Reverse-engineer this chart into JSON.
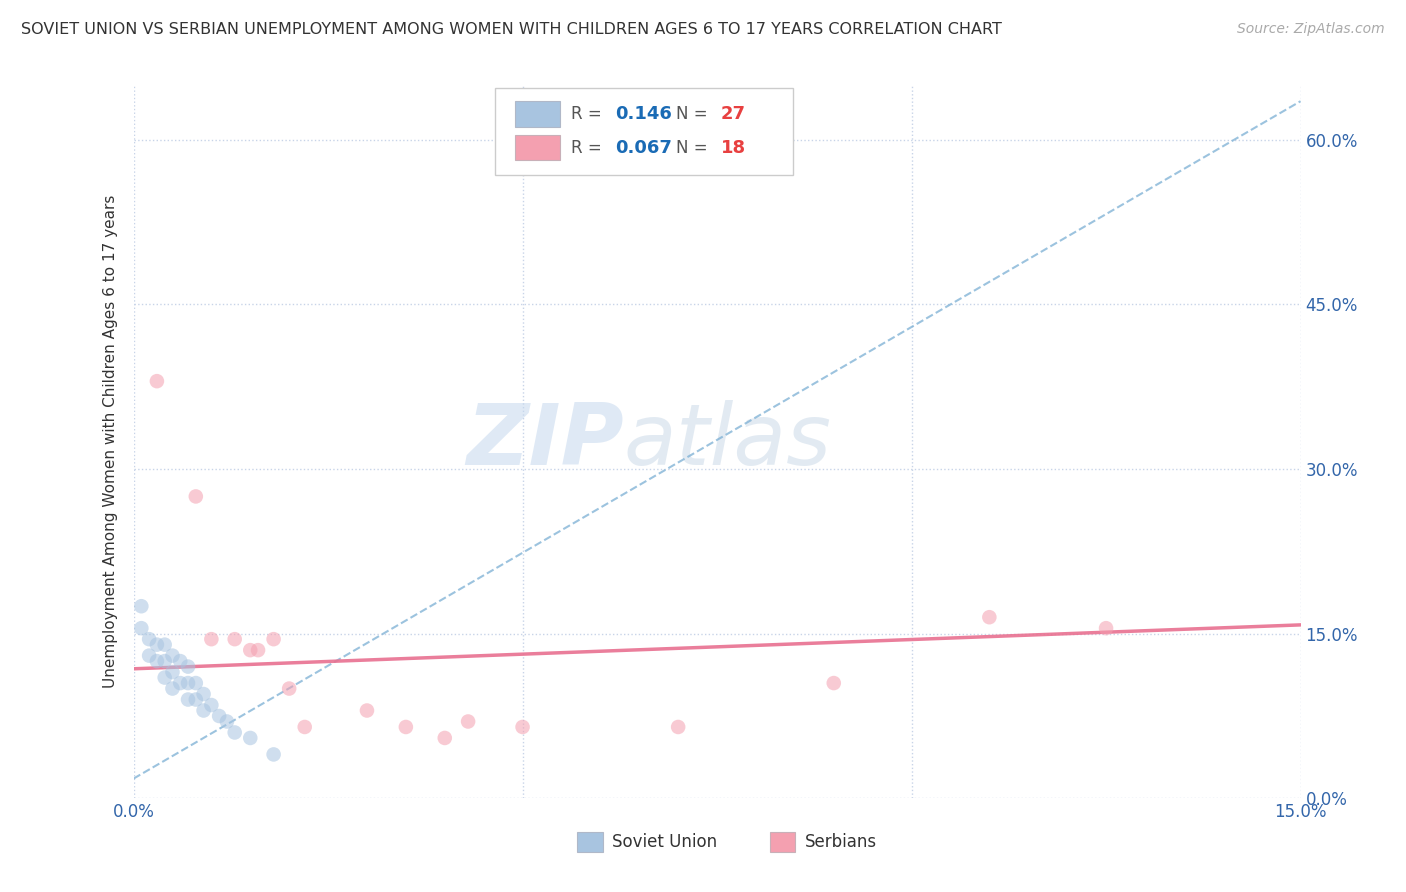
{
  "title": "SOVIET UNION VS SERBIAN UNEMPLOYMENT AMONG WOMEN WITH CHILDREN AGES 6 TO 17 YEARS CORRELATION CHART",
  "source": "Source: ZipAtlas.com",
  "ylabel": "Unemployment Among Women with Children Ages 6 to 17 years",
  "xlim": [
    0.0,
    0.15
  ],
  "ylim": [
    0.0,
    0.65
  ],
  "ytick_positions": [
    0.0,
    0.15,
    0.3,
    0.45,
    0.6
  ],
  "ytick_labels_right": [
    "0.0%",
    "15.0%",
    "30.0%",
    "45.0%",
    "60.0%"
  ],
  "xtick_positions": [
    0.0,
    0.05,
    0.1,
    0.15
  ],
  "xtick_labels": [
    "0.0%",
    "",
    "",
    "15.0%"
  ],
  "soviet_color": "#a8c4e0",
  "serbian_color": "#f4a0b0",
  "soviet_line_color": "#7bafd4",
  "serbian_line_color": "#e87090",
  "soviet_R": 0.146,
  "soviet_N": 27,
  "serbian_R": 0.067,
  "serbian_N": 18,
  "legend_R_color": "#1a6bb5",
  "legend_N_color": "#e84040",
  "watermark_zip": "ZIP",
  "watermark_atlas": "atlas",
  "background_color": "#ffffff",
  "grid_color": "#c8d4e8",
  "dot_size": 110,
  "dot_alpha": 0.55,
  "soviet_x": [
    0.001,
    0.001,
    0.002,
    0.002,
    0.003,
    0.003,
    0.004,
    0.004,
    0.004,
    0.005,
    0.005,
    0.005,
    0.006,
    0.006,
    0.007,
    0.007,
    0.007,
    0.008,
    0.008,
    0.009,
    0.009,
    0.01,
    0.011,
    0.012,
    0.013,
    0.015,
    0.018
  ],
  "soviet_y": [
    0.175,
    0.155,
    0.145,
    0.13,
    0.14,
    0.125,
    0.14,
    0.125,
    0.11,
    0.13,
    0.115,
    0.1,
    0.125,
    0.105,
    0.12,
    0.105,
    0.09,
    0.105,
    0.09,
    0.095,
    0.08,
    0.085,
    0.075,
    0.07,
    0.06,
    0.055,
    0.04
  ],
  "serbian_x": [
    0.003,
    0.008,
    0.01,
    0.013,
    0.015,
    0.016,
    0.018,
    0.02,
    0.022,
    0.03,
    0.035,
    0.04,
    0.043,
    0.05,
    0.07,
    0.09,
    0.11,
    0.125
  ],
  "serbian_y": [
    0.38,
    0.275,
    0.145,
    0.145,
    0.135,
    0.135,
    0.145,
    0.1,
    0.065,
    0.08,
    0.065,
    0.055,
    0.07,
    0.065,
    0.065,
    0.105,
    0.165,
    0.155
  ],
  "sov_line_x0": 0.0,
  "sov_line_y0": 0.018,
  "sov_line_x1": 0.15,
  "sov_line_y1": 0.635,
  "ser_line_x0": 0.0,
  "ser_line_y0": 0.118,
  "ser_line_x1": 0.15,
  "ser_line_y1": 0.158
}
